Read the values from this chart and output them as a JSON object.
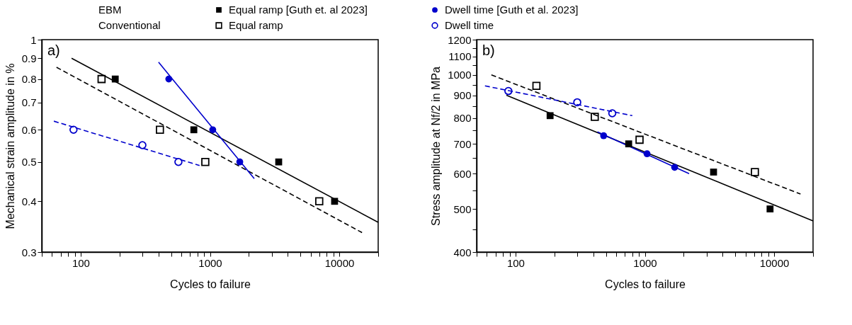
{
  "chart_data": [
    {
      "type": "scatter",
      "xlabel": "Cycles to failure",
      "ylabel": "Mechanical strain amplitude in %",
      "annotations": [
        "a)",
        "EBM",
        "Conventional"
      ],
      "legend": "top",
      "log": "xy",
      "xlim": [
        50,
        20000
      ],
      "ylim": [
        0.3,
        1
      ],
      "xticks": [
        {
          "value": 50,
          "label": null
        },
        {
          "value": 60,
          "label": null
        },
        {
          "value": 70,
          "label": null
        },
        {
          "value": 80,
          "label": null
        },
        {
          "value": 90,
          "label": null
        },
        100,
        {
          "value": 200,
          "label": null
        },
        {
          "value": 300,
          "label": null
        },
        {
          "value": 400,
          "label": null
        },
        {
          "value": 500,
          "label": null
        },
        {
          "value": 600,
          "label": null
        },
        {
          "value": 700,
          "label": null
        },
        {
          "value": 800,
          "label": null
        },
        {
          "value": 900,
          "label": null
        },
        1000,
        {
          "value": 2000,
          "label": null
        },
        {
          "value": 3000,
          "label": null
        },
        {
          "value": 4000,
          "label": null
        },
        {
          "value": 5000,
          "label": null
        },
        {
          "value": 6000,
          "label": null
        },
        {
          "value": 7000,
          "label": null
        },
        {
          "value": 8000,
          "label": null
        },
        {
          "value": 9000,
          "label": null
        },
        10000,
        {
          "value": 20000,
          "label": null
        }
      ],
      "yticks": [
        0.3,
        0.4,
        0.5,
        0.6,
        0.7,
        0.8,
        0.9,
        1
      ],
      "series": [
        {
          "name": "Equal ramp [Guth et. al 2023]",
          "color": "#000000",
          "marker": "square",
          "x": [
            185,
            750,
            3400,
            9200
          ],
          "values": [
            0.8,
            0.6,
            0.5,
            0.4
          ]
        },
        {
          "name": "Dwell time [Guth et al. 2023]",
          "color": "#0000cc",
          "marker": "circle",
          "x": [
            480,
            1050,
            1700
          ],
          "values": [
            0.8,
            0.6,
            0.5
          ]
        },
        {
          "name": "Equal ramp",
          "color": "#000000",
          "marker": "square",
          "x": [
            145,
            410,
            920,
            7000
          ],
          "values": [
            0.8,
            0.6,
            0.5,
            0.4
          ]
        },
        {
          "name": "Dwell time",
          "color": "#0000cc",
          "marker": "circle",
          "x": [
            88,
            300,
            570
          ],
          "values": [
            0.6,
            0.55,
            0.5
          ]
        },
        {
          "type": "line",
          "color": "#000000",
          "line_style": "solid",
          "x": [
            85,
            20000
          ],
          "values": [
            0.9,
            0.355
          ]
        },
        {
          "type": "line",
          "color": "#000000",
          "line_style": "dashed",
          "x": [
            65,
            15000
          ],
          "values": [
            0.855,
            0.335
          ]
        },
        {
          "type": "line",
          "color": "#0000cc",
          "line_style": "solid",
          "x": [
            400,
            2200
          ],
          "values": [
            0.88,
            0.455
          ]
        },
        {
          "type": "line",
          "color": "#0000cc",
          "line_style": "dashed",
          "x": [
            62,
            830
          ],
          "values": [
            0.63,
            0.49
          ]
        }
      ]
    },
    {
      "type": "scatter",
      "xlabel": "Cycles to failure",
      "ylabel": "Stress amplitude at Nf/2 in MPa",
      "annotations": [
        "b)"
      ],
      "log": "xy",
      "xlim": [
        50,
        20000
      ],
      "ylim": [
        400,
        1200
      ],
      "xticks": [
        {
          "value": 50,
          "label": null
        },
        {
          "value": 60,
          "label": null
        },
        {
          "value": 70,
          "label": null
        },
        {
          "value": 80,
          "label": null
        },
        {
          "value": 90,
          "label": null
        },
        100,
        {
          "value": 200,
          "label": null
        },
        {
          "value": 300,
          "label": null
        },
        {
          "value": 400,
          "label": null
        },
        {
          "value": 500,
          "label": null
        },
        {
          "value": 600,
          "label": null
        },
        {
          "value": 700,
          "label": null
        },
        {
          "value": 800,
          "label": null
        },
        {
          "value": 900,
          "label": null
        },
        1000,
        {
          "value": 2000,
          "label": null
        },
        {
          "value": 3000,
          "label": null
        },
        {
          "value": 4000,
          "label": null
        },
        {
          "value": 5000,
          "label": null
        },
        {
          "value": 6000,
          "label": null
        },
        {
          "value": 7000,
          "label": null
        },
        {
          "value": 8000,
          "label": null
        },
        {
          "value": 9000,
          "label": null
        },
        10000,
        {
          "value": 20000,
          "label": null
        }
      ],
      "yticks": [
        400,
        {
          "value": 450,
          "label": null
        },
        500,
        {
          "value": 550,
          "label": null
        },
        600,
        {
          "value": 650,
          "label": null
        },
        700,
        {
          "value": 750,
          "label": null
        },
        800,
        {
          "value": 850,
          "label": null
        },
        900,
        {
          "value": 950,
          "label": null
        },
        1000,
        {
          "value": 1050,
          "label": null
        },
        1100,
        {
          "value": 1150,
          "label": null
        },
        1200
      ],
      "series": [
        {
          "color": "#000000",
          "marker": "square",
          "x": [
            185,
            750,
            3400,
            9300
          ],
          "values": [
            810,
            700,
            605,
            500
          ]
        },
        {
          "color": "#0000cc",
          "marker": "circle",
          "x": [
            480,
            1040,
            1700
          ],
          "values": [
            730,
            665,
            620
          ]
        },
        {
          "color": "#000000",
          "marker": "square",
          "x": [
            145,
            410,
            910,
            7100
          ],
          "values": [
            945,
            805,
            715,
            605
          ]
        },
        {
          "color": "#0000cc",
          "marker": "circle",
          "x": [
            88,
            300,
            560
          ],
          "values": [
            920,
            868,
            820
          ]
        },
        {
          "type": "line",
          "color": "#000000",
          "line_style": "solid",
          "x": [
            85,
            20000
          ],
          "values": [
            900,
            470
          ]
        },
        {
          "type": "line",
          "color": "#000000",
          "line_style": "dashed",
          "x": [
            65,
            16000
          ],
          "values": [
            1000,
            540
          ]
        },
        {
          "type": "line",
          "color": "#0000cc",
          "line_style": "solid",
          "x": [
            430,
            2200
          ],
          "values": [
            745,
            600
          ]
        },
        {
          "type": "line",
          "color": "#0000cc",
          "line_style": "dashed",
          "x": [
            58,
            800
          ],
          "values": [
            945,
            810
          ]
        }
      ]
    }
  ]
}
